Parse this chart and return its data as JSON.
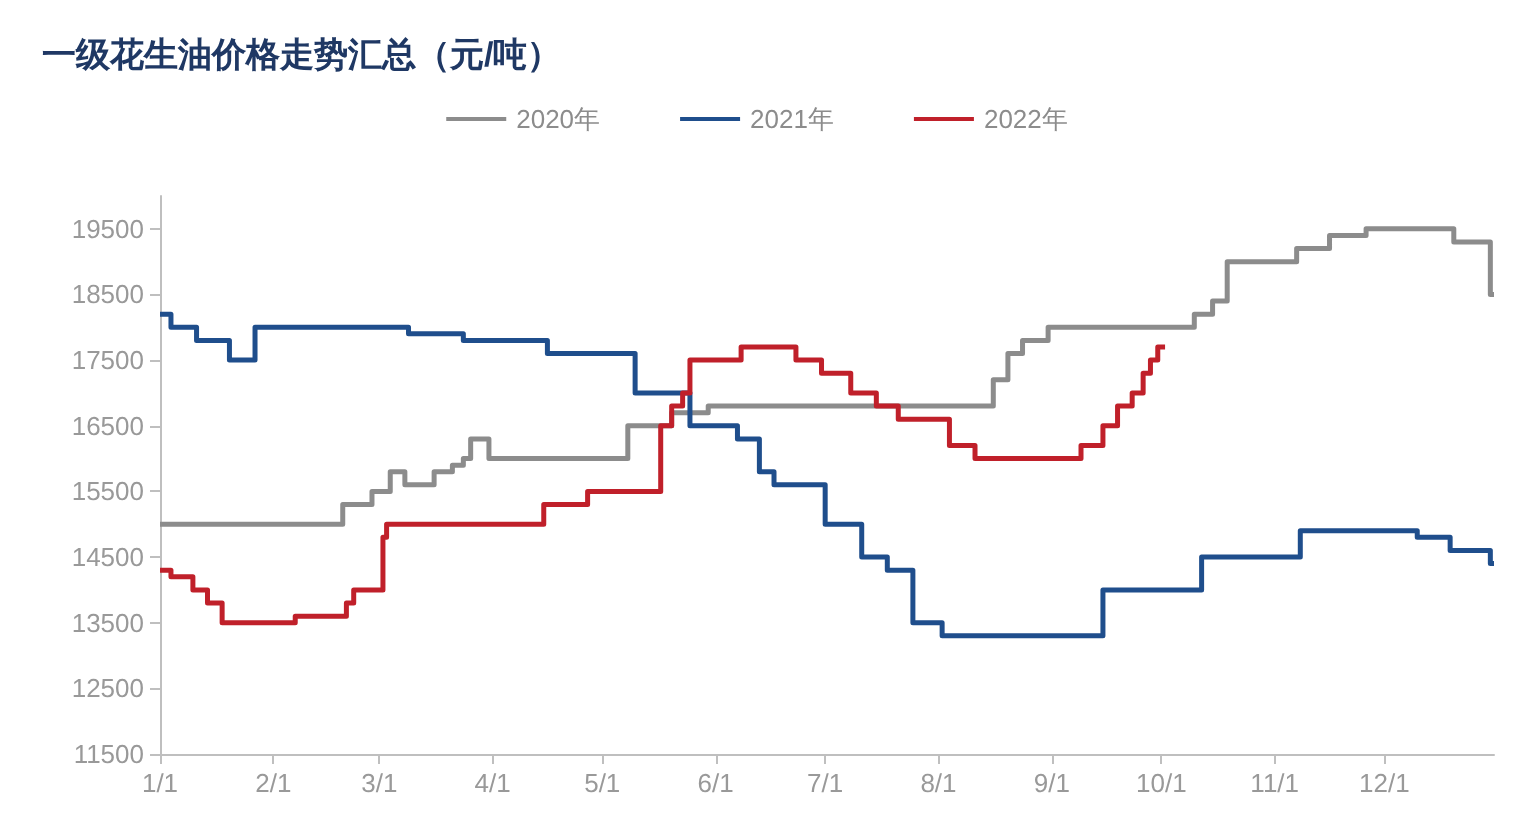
{
  "chart_data": {
    "type": "step",
    "title": "一级花生油价格走势汇总（元/吨）",
    "legend": "top",
    "grid": false,
    "marker": "none",
    "line_style": "solid",
    "xlim": [
      "--01-01",
      "--12-31"
    ],
    "xticks": [
      {
        "value": "--01-01",
        "label": "1/1"
      },
      {
        "value": "--02-01",
        "label": "2/1"
      },
      {
        "value": "--03-01",
        "label": "3/1"
      },
      {
        "value": "--04-01",
        "label": "4/1"
      },
      {
        "value": "--05-01",
        "label": "5/1"
      },
      {
        "value": "--06-01",
        "label": "6/1"
      },
      {
        "value": "--07-01",
        "label": "7/1"
      },
      {
        "value": "--08-01",
        "label": "8/1"
      },
      {
        "value": "--09-01",
        "label": "9/1"
      },
      {
        "value": "--10-01",
        "label": "10/1"
      },
      {
        "value": "--11-01",
        "label": "11/1"
      },
      {
        "value": "--12-01",
        "label": "12/1"
      }
    ],
    "ylim": [
      11500,
      20000
    ],
    "yticks": [
      11500,
      12500,
      13500,
      14500,
      15500,
      16500,
      17500,
      18500,
      19500
    ],
    "series": [
      {
        "name": "2020年",
        "color": "#8c8c8c",
        "x": [
          "--01-01",
          "--02-20",
          "--02-28",
          "--03-04",
          "--03-08",
          "--03-16",
          "--03-21",
          "--03-24",
          "--03-26",
          "--03-31",
          "--05-08",
          "--05-20",
          "--05-30",
          "--08-11",
          "--08-16",
          "--08-20",
          "--08-24",
          "--08-31",
          "--10-07",
          "--10-10",
          "--10-15",
          "--10-19",
          "--11-07",
          "--11-16",
          "--11-26",
          "--12-20",
          "--12-30",
          "--12-31"
        ],
        "values": [
          15000,
          15300,
          15500,
          15800,
          15600,
          15800,
          15900,
          16000,
          16300,
          16000,
          16500,
          16700,
          16800,
          16800,
          17200,
          17600,
          17800,
          18000,
          18000,
          18200,
          18400,
          19000,
          19200,
          19400,
          19500,
          19300,
          18500,
          18500
        ]
      },
      {
        "name": "2021年",
        "color": "#1f4e8c",
        "x": [
          "--01-01",
          "--01-04",
          "--01-11",
          "--01-20",
          "--01-27",
          "--03-09",
          "--03-24",
          "--04-16",
          "--05-10",
          "--05-25",
          "--06-07",
          "--06-13",
          "--06-17",
          "--07-01",
          "--07-11",
          "--07-18",
          "--07-25",
          "--08-02",
          "--09-15",
          "--10-12",
          "--11-08",
          "--12-10",
          "--12-19",
          "--12-30",
          "--12-31"
        ],
        "values": [
          18200,
          18000,
          17800,
          17500,
          18000,
          17900,
          17800,
          17600,
          17000,
          16500,
          16300,
          15800,
          15600,
          15000,
          14500,
          14300,
          13500,
          13300,
          14000,
          14500,
          14900,
          14800,
          14600,
          14400,
          14400
        ]
      },
      {
        "name": "2022年",
        "color": "#c0202a",
        "x": [
          "--01-01",
          "--01-04",
          "--01-10",
          "--01-14",
          "--01-18",
          "--02-07",
          "--02-21",
          "--02-23",
          "--03-02",
          "--03-03",
          "--04-15",
          "--04-27",
          "--05-17",
          "--05-20",
          "--05-23",
          "--05-25",
          "--06-08",
          "--06-23",
          "--06-30",
          "--07-08",
          "--07-15",
          "--07-21",
          "--08-04",
          "--08-11",
          "--09-09",
          "--09-15",
          "--09-19",
          "--09-23",
          "--09-26",
          "--09-28",
          "--09-30",
          "--10-02"
        ],
        "values": [
          14300,
          14200,
          14000,
          13800,
          13500,
          13600,
          13800,
          14000,
          14800,
          15000,
          15300,
          15500,
          16500,
          16800,
          17000,
          17500,
          17700,
          17500,
          17300,
          17000,
          16800,
          16600,
          16200,
          16000,
          16200,
          16500,
          16800,
          17000,
          17300,
          17500,
          17700,
          17700
        ]
      }
    ]
  }
}
